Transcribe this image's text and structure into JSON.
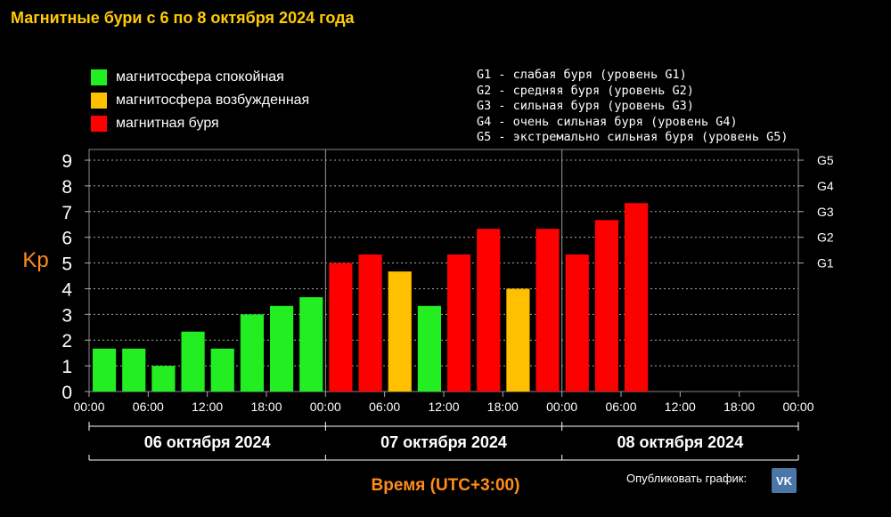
{
  "page_title": "Магнитные бури с 6 по 8 октября 2024 года",
  "legend": [
    {
      "label": "магнитосфера спокойная",
      "color": "#22ee22"
    },
    {
      "label": "магнитосфера возбужденная",
      "color": "#ffc000"
    },
    {
      "label": "магнитная буря",
      "color": "#ff0000"
    }
  ],
  "g_levels": [
    "G1 - слабая буря (уровень G1)",
    "G2 - средняя буря (уровень G2)",
    "G3 - сильная буря (уровень G3)",
    "G4 - очень сильная буря (уровень G4)",
    "G5 - экстремально сильная буря (уровень G5)"
  ],
  "publish": {
    "label": "Опубликовать график:",
    "icon": "vk-icon",
    "icon_text": "VK"
  },
  "chart_data": {
    "type": "bar",
    "title": "Магнитные бури с 6 по 8 октября 2024 года",
    "ylabel": "Kp",
    "xlabel": "Время (UTC+3:00)",
    "ylim": [
      0,
      9
    ],
    "yticks": [
      "0",
      "1",
      "2",
      "3",
      "4",
      "5",
      "6",
      "7",
      "8",
      "9"
    ],
    "right_ticks": [
      {
        "value": 5,
        "label": "G1"
      },
      {
        "value": 6,
        "label": "G2"
      },
      {
        "value": 7,
        "label": "G3"
      },
      {
        "value": 8,
        "label": "G4"
      },
      {
        "value": 9,
        "label": "G5"
      }
    ],
    "x_tick_labels": [
      "00:00",
      "06:00",
      "12:00",
      "18:00",
      "00:00",
      "06:00",
      "12:00",
      "18:00",
      "00:00",
      "06:00",
      "12:00",
      "18:00",
      "00:00"
    ],
    "days": [
      "06 октября 2024",
      "07 октября 2024",
      "08 октября 2024"
    ],
    "grid": true,
    "values": [
      1.67,
      1.67,
      1.0,
      2.33,
      1.67,
      3.0,
      3.33,
      3.67,
      5.0,
      5.33,
      4.67,
      3.33,
      5.33,
      6.33,
      4.0,
      6.33,
      5.33,
      6.67,
      7.33
    ],
    "colors": [
      "#22ee22",
      "#22ee22",
      "#22ee22",
      "#22ee22",
      "#22ee22",
      "#22ee22",
      "#22ee22",
      "#22ee22",
      "#ff0000",
      "#ff0000",
      "#ffc000",
      "#22ee22",
      "#ff0000",
      "#ff0000",
      "#ffc000",
      "#ff0000",
      "#ff0000",
      "#ff0000",
      "#ff0000"
    ],
    "total_slots": 24
  }
}
